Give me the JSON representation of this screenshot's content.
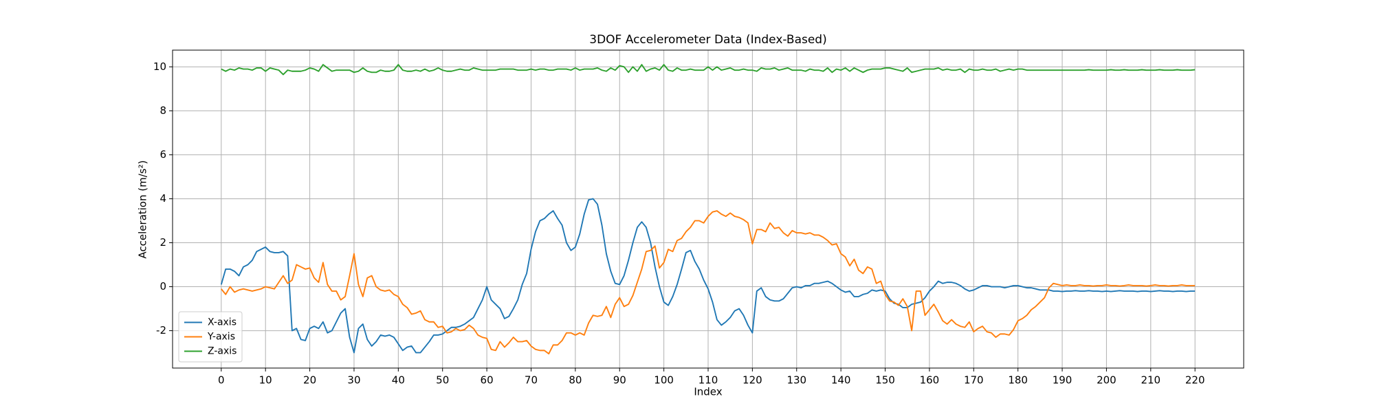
{
  "chart_data": {
    "type": "line",
    "title": "3DOF Accelerometer Data (Index-Based)",
    "x_label": "Index",
    "y_label": "Acceleration (m/s²)",
    "x": [
      0,
      1,
      2,
      3,
      4,
      5,
      6,
      7,
      8,
      9,
      10,
      11,
      12,
      13,
      14,
      15,
      16,
      17,
      18,
      19,
      20,
      21,
      22,
      23,
      24,
      25,
      26,
      27,
      28,
      29,
      30,
      31,
      32,
      33,
      34,
      35,
      36,
      37,
      38,
      39,
      40,
      41,
      42,
      43,
      44,
      45,
      46,
      47,
      48,
      49,
      50,
      51,
      52,
      53,
      54,
      55,
      56,
      57,
      58,
      59,
      60,
      61,
      62,
      63,
      64,
      65,
      66,
      67,
      68,
      69,
      70,
      71,
      72,
      73,
      74,
      75,
      76,
      77,
      78,
      79,
      80,
      81,
      82,
      83,
      84,
      85,
      86,
      87,
      88,
      89,
      90,
      91,
      92,
      93,
      94,
      95,
      96,
      97,
      98,
      99,
      100,
      101,
      102,
      103,
      104,
      105,
      106,
      107,
      108,
      109,
      110,
      111,
      112,
      113,
      114,
      115,
      116,
      117,
      118,
      119,
      120,
      121,
      122,
      123,
      124,
      125,
      126,
      127,
      128,
      129,
      130,
      131,
      132,
      133,
      134,
      135,
      136,
      137,
      138,
      139,
      140,
      141,
      142,
      143,
      144,
      145,
      146,
      147,
      148,
      149,
      150,
      151,
      152,
      153,
      154,
      155,
      156,
      157,
      158,
      159,
      160,
      161,
      162,
      163,
      164,
      165,
      166,
      167,
      168,
      169,
      170,
      171,
      172,
      173,
      174,
      175,
      176,
      177,
      178,
      179,
      180,
      181,
      182,
      183,
      184,
      185,
      186,
      187,
      188,
      189,
      190,
      191,
      192,
      193,
      194,
      195,
      196,
      197,
      198,
      199,
      200,
      201,
      202,
      203,
      204,
      205,
      206,
      207,
      208,
      209,
      210,
      211,
      212,
      213,
      214,
      215,
      216,
      217,
      218,
      219,
      220
    ],
    "series": [
      {
        "name": "X-axis",
        "color": "#1f77b4",
        "values": [
          0.1,
          0.8,
          0.8,
          0.7,
          0.5,
          0.9,
          1.0,
          1.2,
          1.6,
          1.7,
          1.8,
          1.6,
          1.55,
          1.55,
          1.6,
          1.4,
          -2.0,
          -1.9,
          -2.4,
          -2.45,
          -1.9,
          -1.8,
          -1.9,
          -1.6,
          -2.1,
          -2.0,
          -1.6,
          -1.2,
          -1.0,
          -2.3,
          -3.0,
          -1.9,
          -1.7,
          -2.4,
          -2.7,
          -2.5,
          -2.2,
          -2.25,
          -2.2,
          -2.3,
          -2.6,
          -2.9,
          -2.75,
          -2.7,
          -3.0,
          -3.0,
          -2.75,
          -2.5,
          -2.2,
          -2.2,
          -2.15,
          -2.0,
          -1.85,
          -1.85,
          -1.8,
          -1.7,
          -1.55,
          -1.4,
          -1.0,
          -0.6,
          0.0,
          -0.6,
          -0.8,
          -1.0,
          -1.45,
          -1.35,
          -1.0,
          -0.6,
          0.1,
          0.6,
          1.7,
          2.5,
          3.0,
          3.1,
          3.3,
          3.45,
          3.1,
          2.8,
          2.0,
          1.65,
          1.8,
          2.4,
          3.3,
          3.95,
          4.0,
          3.75,
          2.8,
          1.5,
          0.7,
          0.15,
          0.1,
          0.5,
          1.2,
          2.0,
          2.7,
          2.95,
          2.7,
          2.0,
          0.9,
          0.0,
          -0.7,
          -0.85,
          -0.45,
          0.1,
          0.8,
          1.55,
          1.65,
          1.15,
          0.8,
          0.3,
          -0.1,
          -0.7,
          -1.5,
          -1.75,
          -1.6,
          -1.4,
          -1.1,
          -1.0,
          -1.3,
          -1.75,
          -2.1,
          -0.2,
          -0.05,
          -0.45,
          -0.6,
          -0.65,
          -0.65,
          -0.55,
          -0.3,
          -0.05,
          0.0,
          -0.05,
          0.05,
          0.05,
          0.15,
          0.15,
          0.2,
          0.25,
          0.15,
          0.0,
          -0.15,
          -0.25,
          -0.2,
          -0.45,
          -0.45,
          -0.35,
          -0.3,
          -0.15,
          -0.2,
          -0.15,
          -0.2,
          -0.55,
          -0.75,
          -0.8,
          -0.95,
          -0.95,
          -0.8,
          -0.75,
          -0.7,
          -0.5,
          -0.2,
          0.0,
          0.25,
          0.15,
          0.2,
          0.2,
          0.15,
          0.05,
          -0.1,
          -0.2,
          -0.15,
          -0.05,
          0.05,
          0.05,
          0.0,
          0.0,
          0.0,
          -0.05,
          0.0,
          0.05,
          0.05,
          0.0,
          -0.05,
          -0.05,
          -0.1,
          -0.15,
          -0.15,
          -0.15,
          -0.2,
          -0.2,
          -0.22,
          -0.2,
          -0.2,
          -0.18,
          -0.2,
          -0.2,
          -0.18,
          -0.2,
          -0.2,
          -0.22,
          -0.2,
          -0.22,
          -0.2,
          -0.18,
          -0.2,
          -0.2,
          -0.2,
          -0.22,
          -0.2,
          -0.2,
          -0.22,
          -0.2,
          -0.18,
          -0.2,
          -0.2,
          -0.22,
          -0.2,
          -0.2,
          -0.22,
          -0.2,
          -0.2
        ]
      },
      {
        "name": "Y-axis",
        "color": "#ff7f0e",
        "values": [
          -0.1,
          -0.35,
          0.0,
          -0.25,
          -0.15,
          -0.1,
          -0.15,
          -0.2,
          -0.15,
          -0.1,
          0.0,
          -0.05,
          -0.1,
          0.2,
          0.5,
          0.15,
          0.3,
          1.0,
          0.9,
          0.8,
          0.85,
          0.4,
          0.2,
          1.1,
          0.1,
          -0.2,
          -0.2,
          -0.6,
          -0.45,
          0.5,
          1.5,
          0.1,
          -0.45,
          0.4,
          0.5,
          0.0,
          -0.15,
          -0.2,
          -0.15,
          -0.35,
          -0.45,
          -0.8,
          -0.95,
          -1.25,
          -1.2,
          -1.1,
          -1.5,
          -1.6,
          -1.6,
          -1.85,
          -1.8,
          -2.1,
          -2.05,
          -1.9,
          -2.0,
          -1.95,
          -1.75,
          -1.9,
          -2.2,
          -2.3,
          -2.35,
          -2.85,
          -2.9,
          -2.5,
          -2.75,
          -2.55,
          -2.3,
          -2.5,
          -2.5,
          -2.45,
          -2.7,
          -2.85,
          -2.9,
          -2.9,
          -3.05,
          -2.65,
          -2.65,
          -2.45,
          -2.1,
          -2.1,
          -2.2,
          -2.1,
          -2.2,
          -1.65,
          -1.3,
          -1.35,
          -1.3,
          -0.9,
          -1.4,
          -0.8,
          -0.5,
          -0.9,
          -0.8,
          -0.4,
          0.2,
          0.8,
          1.6,
          1.65,
          1.85,
          0.85,
          1.1,
          1.7,
          1.6,
          2.1,
          2.2,
          2.5,
          2.7,
          3.0,
          3.0,
          2.9,
          3.2,
          3.4,
          3.45,
          3.3,
          3.2,
          3.35,
          3.2,
          3.15,
          3.05,
          2.9,
          1.95,
          2.6,
          2.6,
          2.5,
          2.9,
          2.65,
          2.7,
          2.45,
          2.3,
          2.55,
          2.45,
          2.45,
          2.4,
          2.45,
          2.35,
          2.35,
          2.25,
          2.1,
          1.9,
          1.95,
          1.5,
          1.35,
          0.95,
          1.25,
          0.75,
          0.6,
          0.9,
          0.8,
          0.15,
          0.25,
          -0.35,
          -0.65,
          -0.7,
          -0.85,
          -0.55,
          -0.9,
          -2.0,
          -0.2,
          -0.2,
          -1.3,
          -1.05,
          -0.8,
          -1.15,
          -1.55,
          -1.7,
          -1.5,
          -1.7,
          -1.8,
          -1.85,
          -1.6,
          -2.05,
          -1.9,
          -1.8,
          -2.05,
          -2.1,
          -2.3,
          -2.15,
          -2.15,
          -2.2,
          -1.95,
          -1.55,
          -1.45,
          -1.3,
          -1.05,
          -0.9,
          -0.7,
          -0.5,
          -0.05,
          0.15,
          0.1,
          0.05,
          0.08,
          0.05,
          0.05,
          0.08,
          0.05,
          0.05,
          0.03,
          0.05,
          0.05,
          0.08,
          0.05,
          0.05,
          0.03,
          0.05,
          0.08,
          0.05,
          0.05,
          0.05,
          0.03,
          0.05,
          0.08,
          0.05,
          0.05,
          0.03,
          0.05,
          0.05,
          0.08,
          0.05,
          0.05,
          0.05
        ]
      },
      {
        "name": "Z-axis",
        "color": "#2ca02c",
        "values": [
          9.9,
          9.8,
          9.9,
          9.85,
          9.95,
          9.9,
          9.9,
          9.85,
          9.95,
          9.95,
          9.8,
          9.95,
          9.9,
          9.85,
          9.65,
          9.85,
          9.8,
          9.8,
          9.8,
          9.85,
          9.95,
          9.9,
          9.8,
          10.1,
          9.95,
          9.8,
          9.85,
          9.85,
          9.85,
          9.85,
          9.75,
          9.8,
          9.95,
          9.8,
          9.75,
          9.75,
          9.85,
          9.8,
          9.8,
          9.85,
          10.1,
          9.85,
          9.8,
          9.8,
          9.85,
          9.8,
          9.9,
          9.8,
          9.85,
          9.95,
          9.85,
          9.8,
          9.8,
          9.85,
          9.9,
          9.85,
          9.85,
          9.95,
          9.9,
          9.85,
          9.85,
          9.85,
          9.85,
          9.9,
          9.9,
          9.9,
          9.9,
          9.85,
          9.85,
          9.85,
          9.9,
          9.85,
          9.9,
          9.9,
          9.85,
          9.85,
          9.9,
          9.9,
          9.9,
          9.85,
          9.95,
          9.85,
          9.9,
          9.9,
          9.9,
          9.95,
          9.85,
          9.8,
          9.95,
          9.85,
          10.05,
          10.0,
          9.75,
          10.0,
          9.8,
          10.1,
          9.8,
          9.9,
          9.95,
          9.85,
          10.1,
          9.85,
          9.8,
          9.95,
          9.85,
          9.85,
          9.9,
          9.85,
          9.85,
          9.85,
          10.0,
          9.85,
          10.0,
          9.85,
          9.9,
          9.95,
          9.85,
          9.85,
          9.9,
          9.85,
          9.85,
          9.8,
          9.95,
          9.9,
          9.9,
          9.95,
          9.85,
          9.9,
          9.95,
          9.85,
          9.85,
          9.85,
          9.8,
          9.9,
          9.85,
          9.85,
          9.8,
          9.95,
          9.75,
          9.9,
          9.85,
          9.95,
          9.8,
          9.95,
          9.85,
          9.75,
          9.85,
          9.9,
          9.9,
          9.9,
          9.95,
          9.95,
          9.9,
          9.85,
          9.8,
          9.95,
          9.75,
          9.8,
          9.85,
          9.9,
          9.9,
          9.9,
          9.95,
          9.85,
          9.9,
          9.85,
          9.85,
          9.9,
          9.75,
          9.9,
          9.85,
          9.85,
          9.9,
          9.85,
          9.85,
          9.9,
          9.8,
          9.85,
          9.9,
          9.85,
          9.9,
          9.9,
          9.85,
          9.85,
          9.85,
          9.85,
          9.85,
          9.85,
          9.85,
          9.85,
          9.85,
          9.85,
          9.85,
          9.85,
          9.85,
          9.85,
          9.87,
          9.85,
          9.85,
          9.85,
          9.85,
          9.87,
          9.85,
          9.85,
          9.87,
          9.85,
          9.85,
          9.85,
          9.87,
          9.85,
          9.85,
          9.85,
          9.87,
          9.85,
          9.85,
          9.85,
          9.87,
          9.85,
          9.85,
          9.85,
          9.87
        ]
      }
    ],
    "xlim": [
      -11,
      231
    ],
    "ylim": [
      -3.7,
      10.76
    ],
    "xticks": [
      0,
      10,
      20,
      30,
      40,
      50,
      60,
      70,
      80,
      90,
      100,
      110,
      120,
      130,
      140,
      150,
      160,
      170,
      180,
      190,
      200,
      210,
      220
    ],
    "yticks": [
      -2,
      0,
      2,
      4,
      6,
      8,
      10
    ],
    "grid": true,
    "legend": "lower left"
  }
}
